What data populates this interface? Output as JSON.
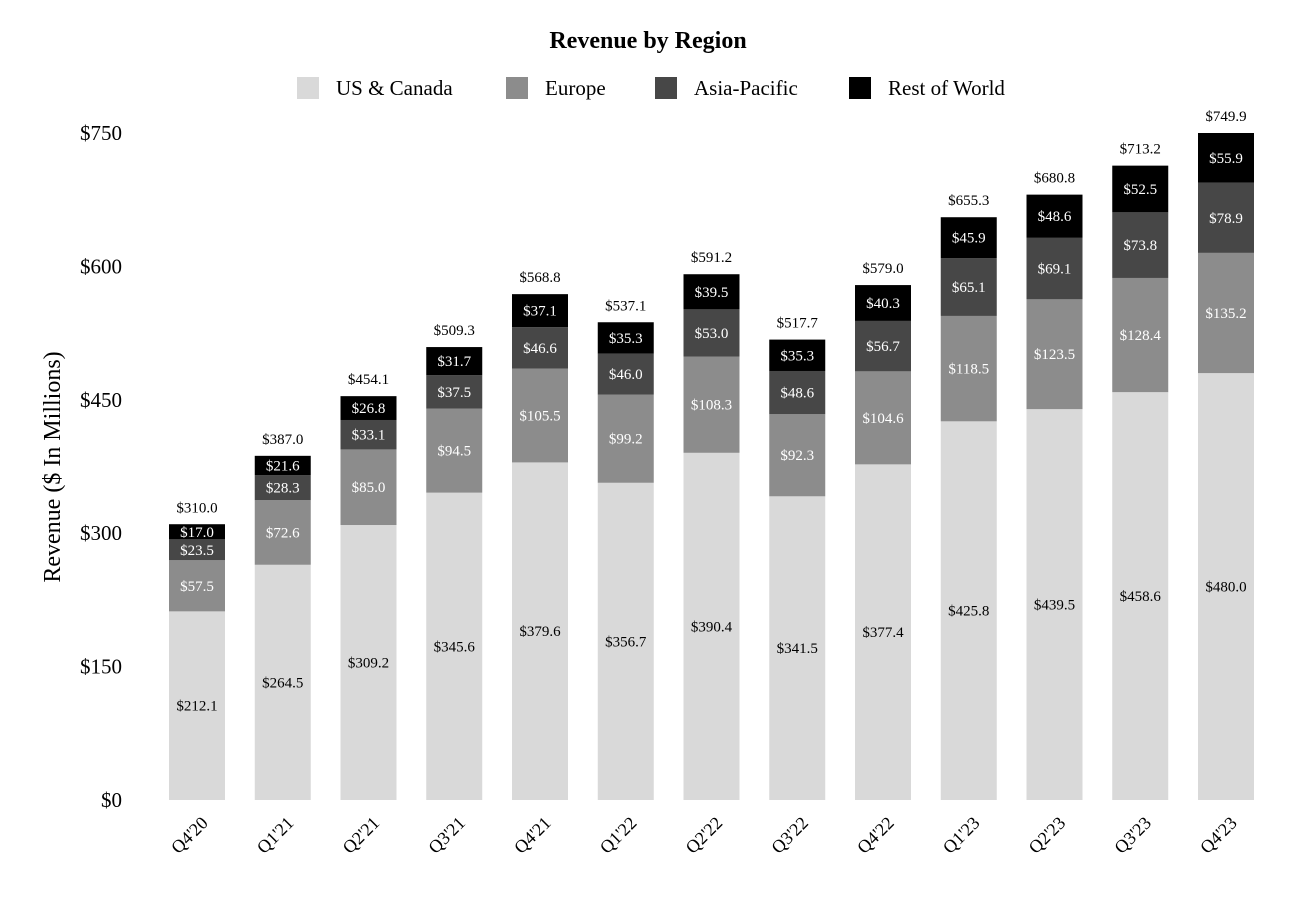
{
  "chart_data": {
    "type": "bar",
    "stacked": true,
    "title": "Revenue by Region",
    "xlabel": "",
    "ylabel": "Revenue ($ In Millions)",
    "ylim": [
      0,
      750
    ],
    "yticks": [
      0,
      150,
      300,
      450,
      600,
      750
    ],
    "ytick_labels": [
      "$0",
      "$150",
      "$300",
      "$450",
      "$600",
      "$750"
    ],
    "grid": false,
    "legend_position": "top-center",
    "categories": [
      "Q4'20",
      "Q1'21",
      "Q2'21",
      "Q3'21",
      "Q4'21",
      "Q1'22",
      "Q2'22",
      "Q3'22",
      "Q4'22",
      "Q1'23",
      "Q2'23",
      "Q3'23",
      "Q4'23"
    ],
    "series": [
      {
        "name": "US & Canada",
        "color": "#d9d9d9",
        "label_color": "#000000",
        "values": [
          212.1,
          264.5,
          309.2,
          345.6,
          379.6,
          356.7,
          390.4,
          341.5,
          377.4,
          425.8,
          439.5,
          458.6,
          480.0
        ],
        "labels": [
          "$212.1",
          "$264.5",
          "$309.2",
          "$345.6",
          "$379.6",
          "$356.7",
          "$390.4",
          "$341.5",
          "$377.4",
          "$425.8",
          "$439.5",
          "$458.6",
          "$480.0"
        ]
      },
      {
        "name": "Europe",
        "color": "#8c8c8c",
        "label_color": "#ffffff",
        "values": [
          57.5,
          72.6,
          85.0,
          94.5,
          105.5,
          99.2,
          108.3,
          92.3,
          104.6,
          118.5,
          123.5,
          128.4,
          135.2
        ],
        "labels": [
          "$57.5",
          "$72.6",
          "$85.0",
          "$94.5",
          "$105.5",
          "$99.2",
          "$108.3",
          "$92.3",
          "$104.6",
          "$118.5",
          "$123.5",
          "$128.4",
          "$135.2"
        ]
      },
      {
        "name": "Asia-Pacific",
        "color": "#474747",
        "label_color": "#ffffff",
        "values": [
          23.5,
          28.3,
          33.1,
          37.5,
          46.6,
          46.0,
          53.0,
          48.6,
          56.7,
          65.1,
          69.1,
          73.8,
          78.9
        ],
        "labels": [
          "$23.5",
          "$28.3",
          "$33.1",
          "$37.5",
          "$46.6",
          "$46.0",
          "$53.0",
          "$48.6",
          "$56.7",
          "$65.1",
          "$69.1",
          "$73.8",
          "$78.9"
        ]
      },
      {
        "name": "Rest of World",
        "color": "#000000",
        "label_color": "#ffffff",
        "values": [
          17.0,
          21.6,
          26.8,
          31.7,
          37.1,
          35.3,
          39.5,
          35.3,
          40.3,
          45.9,
          48.6,
          52.5,
          55.9
        ],
        "labels": [
          "$17.0",
          "$21.6",
          "$26.8",
          "$31.7",
          "$37.1",
          "$35.3",
          "$39.5",
          "$35.3",
          "$40.3",
          "$45.9",
          "$48.6",
          "$52.5",
          "$55.9"
        ]
      }
    ],
    "totals": [
      310.0,
      387.0,
      454.1,
      509.3,
      568.8,
      537.1,
      591.2,
      517.7,
      579.0,
      655.3,
      680.8,
      713.2,
      749.9
    ],
    "total_labels": [
      "$310.0",
      "$387.0",
      "$454.1",
      "$509.3",
      "$568.8",
      "$537.1",
      "$591.2",
      "$517.7",
      "$579.0",
      "$655.3",
      "$680.8",
      "$713.2",
      "$749.9"
    ]
  }
}
